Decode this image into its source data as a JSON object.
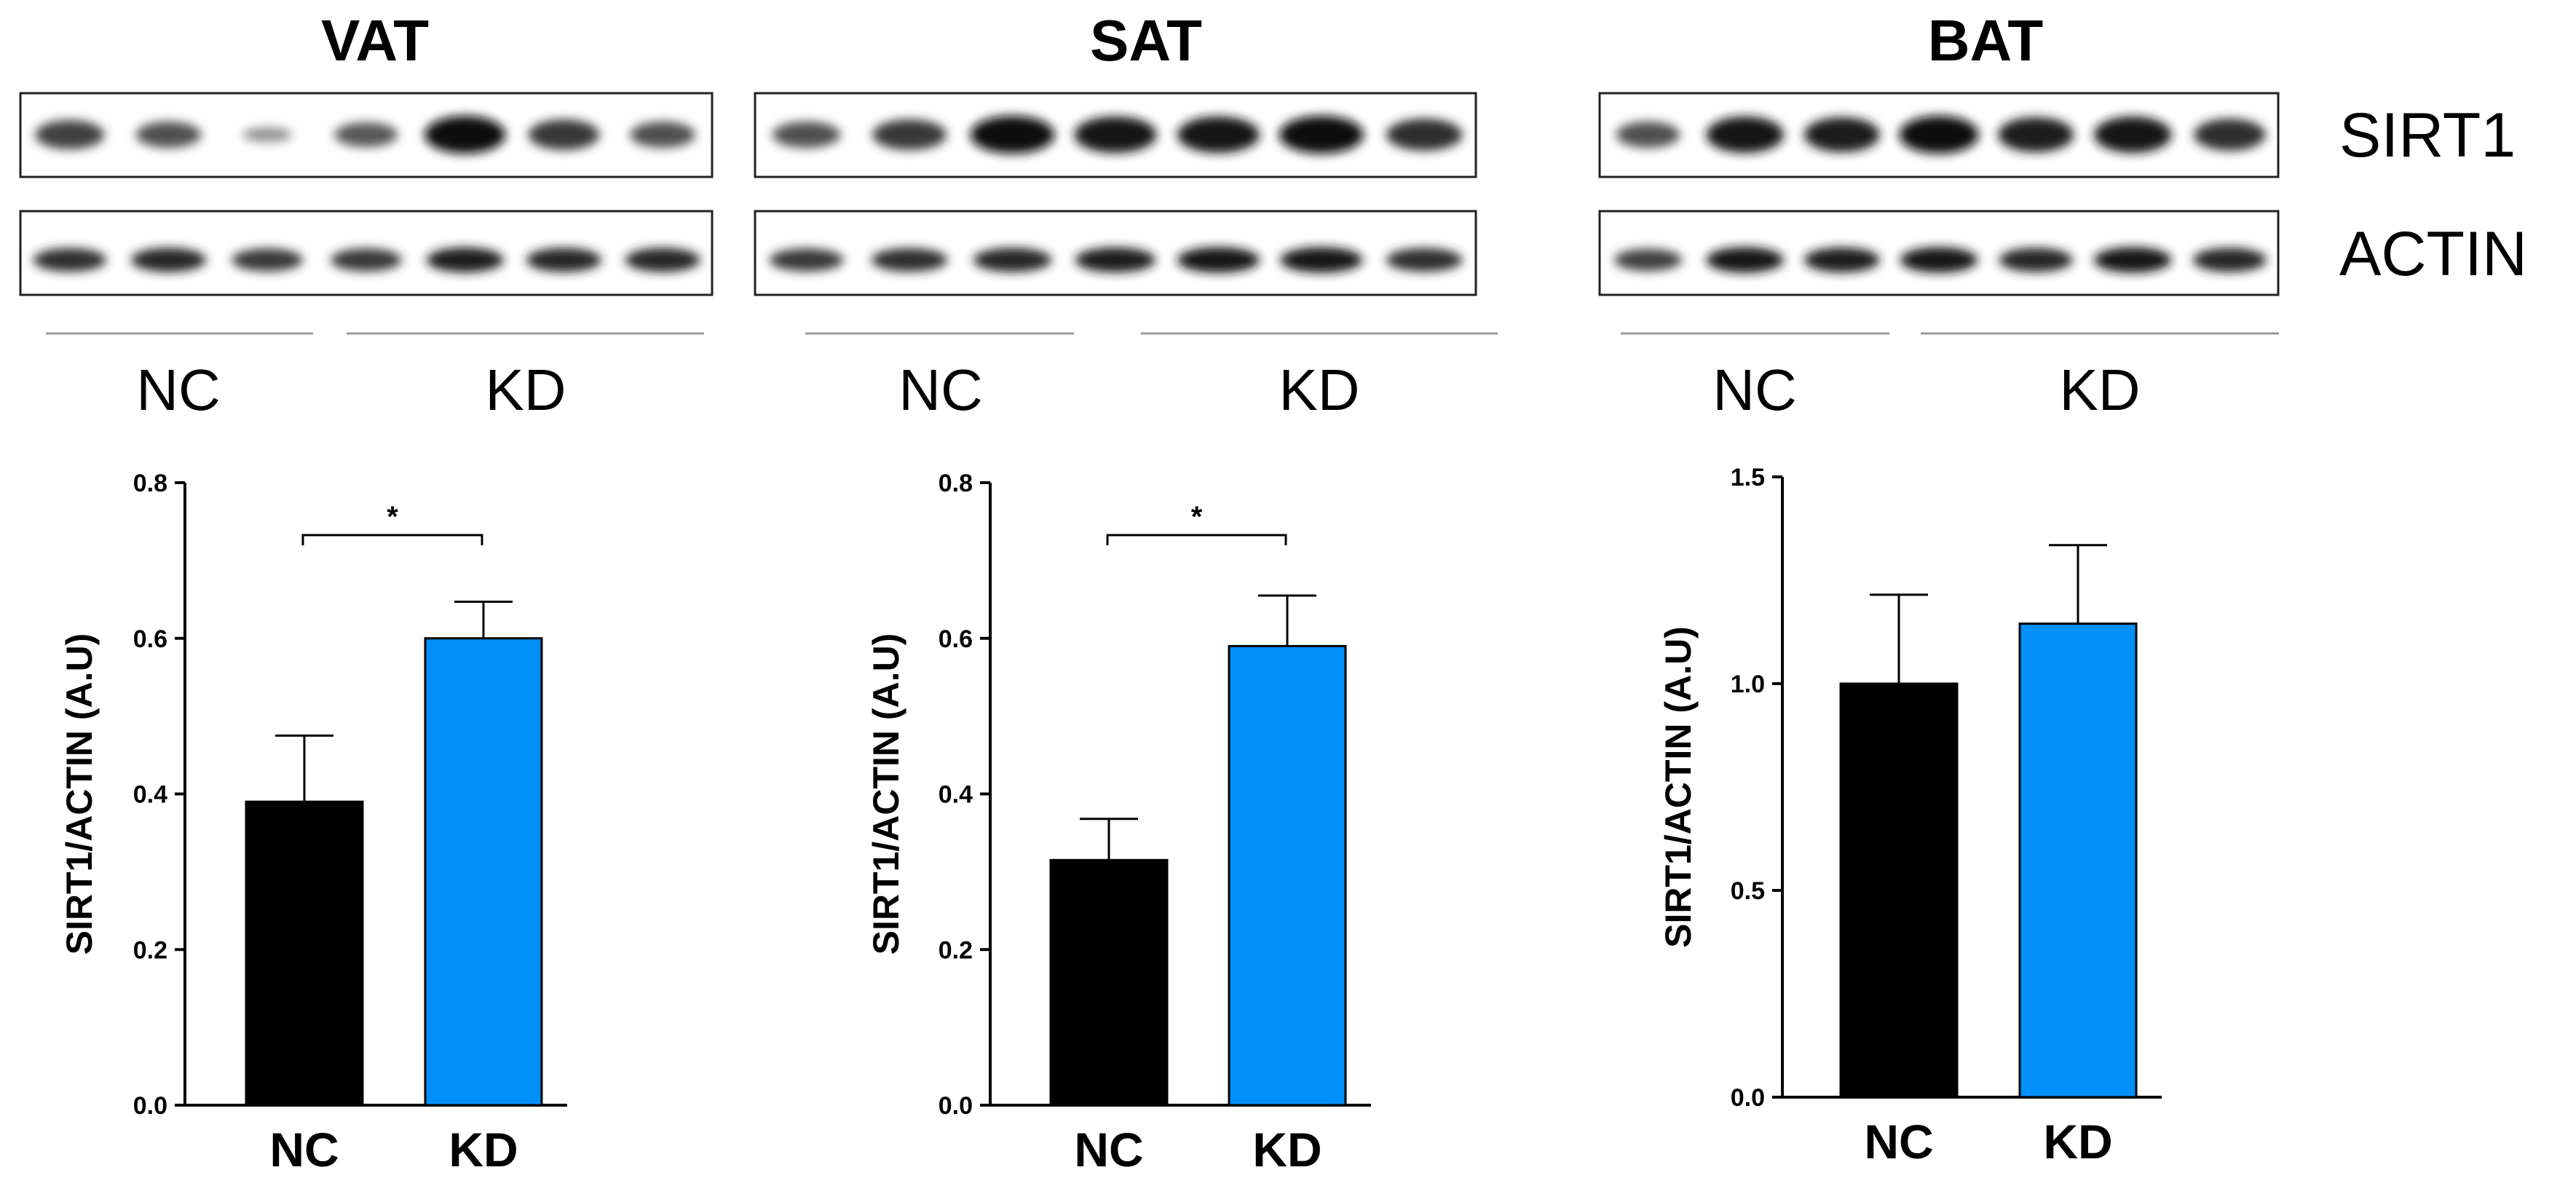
{
  "blot_row_labels": [
    "SIRT1",
    "ACTIN"
  ],
  "panels": [
    {
      "title": "VAT",
      "group_labels": [
        "NC",
        "KD"
      ],
      "blot": {
        "lanes": 7,
        "sirt1_intensity": [
          0.7,
          0.6,
          0.2,
          0.55,
          1.0,
          0.75,
          0.6
        ],
        "actin_intensity": [
          0.8,
          0.85,
          0.75,
          0.75,
          0.9,
          0.85,
          0.85
        ]
      }
    },
    {
      "title": "SAT",
      "group_labels": [
        "NC",
        "KD"
      ],
      "blot": {
        "lanes": 7,
        "sirt1_intensity": [
          0.6,
          0.75,
          1.0,
          0.95,
          0.95,
          1.0,
          0.8
        ],
        "actin_intensity": [
          0.75,
          0.8,
          0.85,
          0.9,
          0.95,
          0.95,
          0.8
        ]
      }
    },
    {
      "title": "BAT",
      "group_labels": [
        "NC",
        "KD"
      ],
      "blot": {
        "lanes": 7,
        "sirt1_intensity": [
          0.6,
          0.95,
          0.9,
          1.0,
          0.9,
          0.95,
          0.8
        ],
        "actin_intensity": [
          0.7,
          0.95,
          0.9,
          0.95,
          0.85,
          0.95,
          0.85
        ]
      }
    }
  ],
  "colors": {
    "NC": "#000000",
    "KD": "#0090f8"
  },
  "chart_data": [
    {
      "type": "bar",
      "categories": [
        "NC",
        "KD"
      ],
      "values": [
        0.39,
        0.6
      ],
      "errors": [
        0.085,
        0.047
      ],
      "ylabel": "SIRT1/ACTIN (A.U)",
      "ylim": [
        0,
        0.8
      ],
      "yticks": [
        "0.0",
        "0.2",
        "0.4",
        "0.6",
        "0.8"
      ],
      "significance": {
        "pair": [
          "NC",
          "KD"
        ],
        "label": "*"
      }
    },
    {
      "type": "bar",
      "categories": [
        "NC",
        "KD"
      ],
      "values": [
        0.315,
        0.59
      ],
      "errors": [
        0.053,
        0.065
      ],
      "ylabel": "SIRT1/ACTIN (A.U)",
      "ylim": [
        0,
        0.8
      ],
      "yticks": [
        "0.0",
        "0.2",
        "0.4",
        "0.6",
        "0.8"
      ],
      "significance": {
        "pair": [
          "NC",
          "KD"
        ],
        "label": "*"
      }
    },
    {
      "type": "bar",
      "categories": [
        "NC",
        "KD"
      ],
      "values": [
        1.0,
        1.145
      ],
      "errors": [
        0.215,
        0.19
      ],
      "ylabel": "SIRT1/ACTIN (A.U)",
      "ylim": [
        0,
        1.5
      ],
      "yticks": [
        "0.0",
        "0.5",
        "1.0",
        "1.5"
      ]
    }
  ]
}
